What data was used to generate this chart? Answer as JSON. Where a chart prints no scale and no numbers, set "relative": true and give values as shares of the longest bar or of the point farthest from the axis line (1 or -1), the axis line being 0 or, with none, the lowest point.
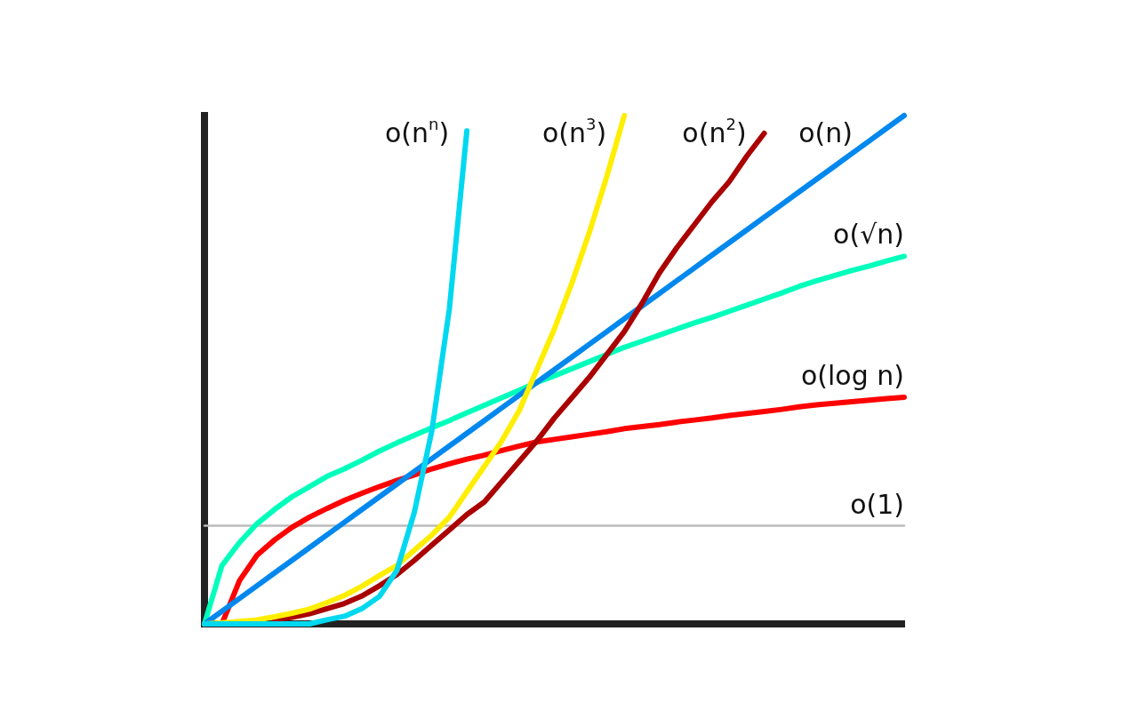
{
  "chart_data": {
    "type": "line",
    "relative": true,
    "marker": "none",
    "line_style": "solid",
    "categories": [
      null,
      null,
      null,
      null,
      null,
      null,
      null,
      null,
      null,
      null,
      null,
      null,
      null,
      null,
      null,
      null,
      null,
      null,
      null,
      null,
      null,
      null,
      null,
      null,
      null,
      null,
      null,
      null,
      null,
      null,
      null,
      null,
      null,
      null,
      null,
      null,
      null,
      null,
      null,
      null,
      null
    ],
    "series": [
      {
        "name": "o(n$^{n}$)",
        "color": "#00d8f0",
        "values": [
          0,
          0,
          0,
          0,
          0,
          0,
          0,
          0.008,
          0.015,
          0.03,
          0.054,
          0.105,
          0.22,
          0.38,
          0.62,
          0.97,
          null,
          null,
          null,
          null,
          null,
          null,
          null,
          null,
          null,
          null,
          null,
          null,
          null,
          null,
          null,
          null,
          null,
          null,
          null,
          null,
          null,
          null,
          null,
          null,
          null
        ]
      },
      {
        "name": "o(n$^{3}$)",
        "color": "#ffee00",
        "values": [
          0,
          0.002,
          0.005,
          0.008,
          0.014,
          0.021,
          0.029,
          0.042,
          0.056,
          0.074,
          0.095,
          0.115,
          0.145,
          0.175,
          0.21,
          0.26,
          0.31,
          0.36,
          0.42,
          0.5,
          0.58,
          0.67,
          0.77,
          0.88,
          1,
          null,
          null,
          null,
          null,
          null,
          null,
          null,
          null,
          null,
          null,
          null,
          null,
          null,
          null,
          null,
          null
        ]
      },
      {
        "name": "o(n$^{2}$)",
        "color": "#aa0000",
        "values": [
          null,
          null,
          null,
          null,
          0.008,
          0.013,
          0.02,
          0.03,
          0.04,
          0.055,
          0.075,
          0.097,
          0.125,
          0.155,
          0.185,
          0.215,
          0.24,
          0.28,
          0.32,
          0.36,
          0.405,
          0.445,
          0.485,
          0.53,
          0.575,
          0.63,
          0.69,
          0.74,
          0.785,
          0.83,
          0.87,
          0.92,
          0.965,
          null,
          null,
          null,
          null,
          null,
          null,
          null,
          null
        ]
      },
      {
        "name": "o(n)",
        "color": "#0088ee",
        "values": [
          0,
          0.025,
          0.05,
          0.075,
          0.1,
          0.125,
          0.15,
          0.175,
          0.2,
          0.225,
          0.25,
          0.275,
          0.3,
          0.325,
          0.35,
          0.375,
          0.4,
          0.425,
          0.45,
          0.475,
          0.5,
          0.525,
          0.55,
          0.575,
          0.6,
          0.625,
          0.65,
          0.675,
          0.7,
          0.725,
          0.75,
          0.775,
          0.8,
          0.825,
          0.85,
          0.875,
          0.9,
          0.925,
          0.95,
          0.975,
          1
        ]
      },
      {
        "name": "o(√n)",
        "color": "#00ffbb",
        "values": [
          0,
          0.115,
          0.16,
          0.197,
          0.225,
          0.25,
          0.27,
          0.29,
          0.305,
          0.322,
          0.34,
          0.356,
          0.371,
          0.386,
          0.4,
          0.415,
          0.43,
          0.445,
          0.46,
          0.475,
          0.488,
          0.502,
          0.516,
          0.53,
          0.544,
          0.556,
          0.568,
          0.58,
          0.592,
          0.603,
          0.615,
          0.627,
          0.639,
          0.651,
          0.664,
          0.675,
          0.685,
          0.695,
          0.704,
          0.714,
          0.723
        ]
      },
      {
        "name": "o(log n)",
        "color": "#ff0000",
        "values": [
          null,
          0,
          0.085,
          0.135,
          0.165,
          0.19,
          0.21,
          0.227,
          0.243,
          0.257,
          0.27,
          0.282,
          0.293,
          0.305,
          0.315,
          0.324,
          0.332,
          0.341,
          0.35,
          0.358,
          0.363,
          0.368,
          0.373,
          0.378,
          0.384,
          0.388,
          0.392,
          0.397,
          0.401,
          0.405,
          0.41,
          0.414,
          0.418,
          0.422,
          0.427,
          0.431,
          0.434,
          0.437,
          0.44,
          0.443,
          0.446
        ]
      },
      {
        "name": "o(1)",
        "color": "#bbbbbb",
        "values": [
          0.193,
          0.193,
          0.193,
          0.193,
          0.193,
          0.193,
          0.193,
          0.193,
          0.193,
          0.193,
          0.193,
          0.193,
          0.193,
          0.193,
          0.193,
          0.193,
          0.193,
          0.193,
          0.193,
          0.193,
          0.193,
          0.193,
          0.193,
          0.193,
          0.193,
          0.193,
          0.193,
          0.193,
          0.193,
          0.193,
          0.193,
          0.193,
          0.193,
          0.193,
          0.193,
          0.193,
          0.193,
          0.193,
          0.193,
          0.193,
          0.193
        ]
      }
    ]
  }
}
